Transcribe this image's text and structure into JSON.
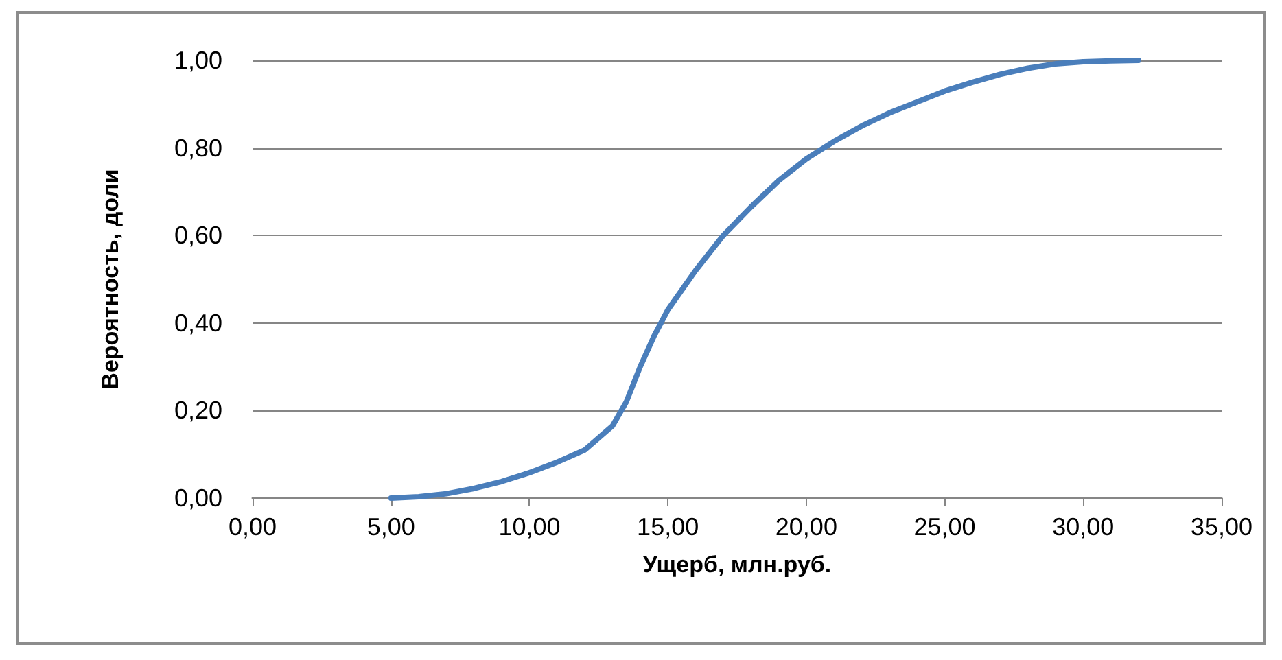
{
  "chart_data": {
    "type": "line",
    "xlabel": "Ущерб, млн.руб.",
    "ylabel": "Вероятность, доли",
    "x": [
      5,
      6,
      7,
      8,
      9,
      10,
      11,
      12,
      13,
      13.5,
      14,
      14.5,
      15,
      16,
      17,
      18,
      19,
      20,
      21,
      22,
      23,
      24,
      25,
      26,
      27,
      28,
      29,
      30,
      31,
      32
    ],
    "series": [
      {
        "color": "#4a7ebb",
        "values": [
          0,
          0.003,
          0.01,
          0.022,
          0.038,
          0.058,
          0.082,
          0.11,
          0.165,
          0.22,
          0.3,
          0.37,
          0.43,
          0.52,
          0.6,
          0.665,
          0.725,
          0.775,
          0.815,
          0.85,
          0.88,
          0.905,
          0.93,
          0.95,
          0.968,
          0.982,
          0.992,
          0.997,
          0.999,
          1
        ]
      }
    ],
    "xlim": [
      0,
      35
    ],
    "xticks": [
      {
        "value": 0,
        "label": "0,00"
      },
      {
        "value": 5,
        "label": "5,00"
      },
      {
        "value": 10,
        "label": "10,00"
      },
      {
        "value": 15,
        "label": "15,00"
      },
      {
        "value": 20,
        "label": "20,00"
      },
      {
        "value": 25,
        "label": "25,00"
      },
      {
        "value": 30,
        "label": "30,00"
      },
      {
        "value": 35,
        "label": "35,00"
      }
    ],
    "ylim": [
      0,
      1
    ],
    "yticks": [
      {
        "value": 0,
        "label": "0,00"
      },
      {
        "value": 0.2,
        "label": "0,20"
      },
      {
        "value": 0.4,
        "label": "0,40"
      },
      {
        "value": 0.6,
        "label": "0,60"
      },
      {
        "value": 0.8,
        "label": "0,80"
      },
      {
        "value": 1,
        "label": "1,00"
      }
    ],
    "grid": "y",
    "marker": "none",
    "line_style": "solid"
  }
}
